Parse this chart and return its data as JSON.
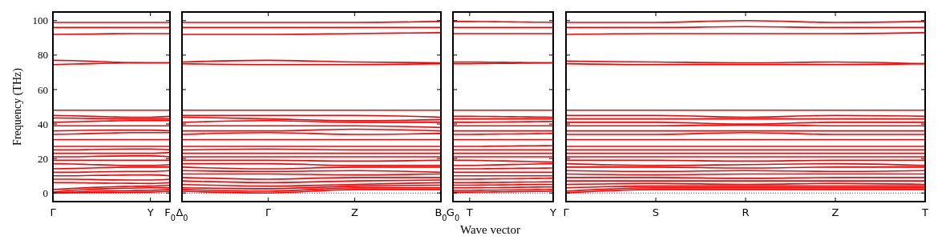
{
  "chart_data": [
    {
      "type": "line",
      "ylabel": "Frequency (THz)",
      "color": "#ff0000",
      "categories": [
        "Γ",
        null,
        null,
        null,
        null,
        "Y",
        "F$_{0}$"
      ],
      "ylim": [
        -5,
        105
      ],
      "yticks": [
        0,
        20,
        40,
        60,
        80,
        100
      ],
      "grid": false,
      "ref_lines": [
        {
          "axis": "y",
          "value": 0,
          "color": "#0000ff",
          "line_style": "dotted"
        }
      ],
      "series": [
        {
          "values": [
            0,
            0.1,
            0.2,
            0.3,
            0.4,
            0.5,
            1
          ]
        },
        {
          "values": [
            0,
            0.5,
            1,
            1.2,
            1.4,
            1.5,
            2
          ]
        },
        {
          "values": [
            0.5,
            1.5,
            2.2,
            2.6,
            2.8,
            3,
            3
          ]
        },
        {
          "values": [
            2,
            2.6,
            3.2,
            3.6,
            3.8,
            4,
            4.5
          ]
        },
        {
          "values": [
            6,
            6,
            5.8,
            5.7,
            5.6,
            5.5,
            6
          ]
        },
        {
          "values": [
            8,
            8,
            7.8,
            7.6,
            7.5,
            7.5,
            8
          ]
        },
        {
          "values": [
            10,
            10,
            10.2,
            10.3,
            10.4,
            10.5,
            10
          ]
        },
        {
          "values": [
            12,
            12,
            12.2,
            12.4,
            12.5,
            12.5,
            13
          ]
        },
        {
          "values": [
            14,
            14.2,
            14.5,
            14.8,
            15,
            15,
            15
          ]
        },
        {
          "values": [
            17,
            16.8,
            16.5,
            16.2,
            16,
            16,
            16.5
          ]
        },
        {
          "values": [
            19,
            19,
            19,
            19,
            19,
            19,
            19
          ]
        },
        {
          "values": [
            21,
            21,
            21.2,
            21.4,
            21.5,
            21.5,
            21
          ]
        },
        {
          "values": [
            23,
            23,
            23,
            23,
            23,
            23,
            23.5
          ]
        },
        {
          "values": [
            25,
            25,
            25.2,
            25.4,
            25.5,
            25.5,
            25
          ]
        },
        {
          "values": [
            27,
            27,
            27,
            27,
            27,
            27,
            27
          ]
        },
        {
          "values": [
            31,
            31,
            31,
            31,
            31,
            31,
            31
          ]
        },
        {
          "values": [
            34,
            34.2,
            34.5,
            34.8,
            35,
            35,
            35
          ]
        },
        {
          "values": [
            36,
            36.2,
            36.4,
            36.5,
            36.5,
            36.5,
            36
          ]
        },
        {
          "values": [
            39,
            39,
            39,
            39,
            39,
            39,
            39
          ]
        },
        {
          "values": [
            41,
            41.3,
            41.6,
            41.8,
            42,
            42,
            42
          ]
        },
        {
          "values": [
            43.5,
            43.4,
            43.2,
            43.1,
            43,
            43,
            43
          ]
        },
        {
          "values": [
            45,
            44.8,
            44.5,
            44.2,
            44,
            44,
            44.5
          ]
        },
        {
          "values": [
            48,
            48,
            48,
            48,
            48,
            48,
            48
          ]
        },
        {
          "values": [
            74.5,
            74.8,
            75,
            75.3,
            75.5,
            75.5,
            75.5
          ]
        },
        {
          "values": [
            77,
            76.8,
            76.4,
            76,
            75.6,
            75.5,
            75.5
          ]
        },
        {
          "values": [
            92,
            92.1,
            92.2,
            92.4,
            92.5,
            92.5,
            92.5
          ]
        },
        {
          "values": [
            96,
            96,
            96,
            96,
            96,
            96,
            96
          ]
        },
        {
          "values": [
            99,
            99,
            99,
            99,
            99,
            99,
            99
          ]
        }
      ]
    },
    {
      "type": "line",
      "color": "#ff0000",
      "tick_labels": "x",
      "categories": [
        "Δ$_{0}$",
        "Γ",
        "Z",
        "B$_{0}$"
      ],
      "ylim": [
        -5,
        105
      ],
      "yticks": [
        0,
        20,
        40,
        60,
        80,
        100
      ],
      "grid": false,
      "ref_lines": [
        {
          "axis": "y",
          "value": 0,
          "color": "#0000ff",
          "line_style": "dotted"
        }
      ],
      "series": [
        {
          "values": [
            1,
            0,
            2,
            2
          ]
        },
        {
          "values": [
            2,
            1,
            3,
            3
          ]
        },
        {
          "values": [
            3,
            2.5,
            4,
            4.5
          ]
        },
        {
          "values": [
            5,
            4,
            5,
            6
          ]
        },
        {
          "values": [
            7,
            6,
            7,
            7.5
          ]
        },
        {
          "values": [
            9,
            8,
            9,
            9
          ]
        },
        {
          "values": [
            11,
            11,
            10.5,
            11
          ]
        },
        {
          "values": [
            13,
            12.5,
            13,
            12
          ]
        },
        {
          "values": [
            15,
            14,
            15,
            15
          ]
        },
        {
          "values": [
            17,
            17,
            16,
            16
          ]
        },
        {
          "values": [
            19,
            19,
            18.5,
            19
          ]
        },
        {
          "values": [
            21,
            21,
            21,
            21
          ]
        },
        {
          "values": [
            23,
            23,
            23,
            23
          ]
        },
        {
          "values": [
            25,
            25.5,
            25,
            25
          ]
        },
        {
          "values": [
            27,
            27,
            27,
            27
          ]
        },
        {
          "values": [
            31,
            31,
            31,
            31
          ]
        },
        {
          "values": [
            34,
            35,
            34,
            34.5
          ]
        },
        {
          "values": [
            36,
            36,
            37,
            36
          ]
        },
        {
          "values": [
            39,
            39,
            39,
            38
          ]
        },
        {
          "values": [
            41,
            42,
            41,
            41
          ]
        },
        {
          "values": [
            44,
            43,
            42,
            42.5
          ]
        },
        {
          "values": [
            45,
            45,
            45,
            44
          ]
        },
        {
          "values": [
            48,
            48,
            48,
            48
          ]
        },
        {
          "values": [
            75,
            74.5,
            74.5,
            75
          ]
        },
        {
          "values": [
            76,
            77,
            76,
            75.5
          ]
        },
        {
          "values": [
            92,
            92,
            92.5,
            93
          ]
        },
        {
          "values": [
            96,
            96,
            96,
            96
          ]
        },
        {
          "values": [
            99,
            99,
            99,
            99.5
          ]
        }
      ]
    },
    {
      "type": "line",
      "xlabel": "Wave vector",
      "color": "#ff0000",
      "tick_labels": "x",
      "categories": [
        "G$_{0}$",
        "T",
        null,
        null,
        null,
        null,
        "Y"
      ],
      "ylim": [
        -5,
        105
      ],
      "yticks": [
        0,
        20,
        40,
        60,
        80,
        100
      ],
      "grid": false,
      "ref_lines": [
        {
          "axis": "y",
          "value": 0,
          "color": "#0000ff",
          "line_style": "dotted"
        }
      ],
      "series": [
        {
          "values": [
            0.5,
            0.5,
            0.6,
            0.7,
            0.8,
            0.9,
            1
          ]
        },
        {
          "values": [
            1.5,
            1.5,
            1.6,
            1.7,
            1.8,
            1.9,
            2
          ]
        },
        {
          "values": [
            3,
            3,
            3.1,
            3.2,
            3.3,
            3.4,
            3.5
          ]
        },
        {
          "values": [
            4.5,
            4.5,
            4.6,
            4.7,
            4.8,
            4.9,
            5
          ]
        },
        {
          "values": [
            6,
            6,
            6.1,
            6.2,
            6.3,
            6.4,
            6.5
          ]
        },
        {
          "values": [
            8,
            8,
            8.1,
            8.2,
            8.3,
            8.4,
            8.5
          ]
        },
        {
          "values": [
            10,
            10,
            10,
            10,
            10,
            10,
            10
          ]
        },
        {
          "values": [
            12,
            12,
            12,
            12,
            12,
            12,
            12
          ]
        },
        {
          "values": [
            14,
            14,
            14.1,
            14.2,
            14.3,
            14.4,
            14.5
          ]
        },
        {
          "values": [
            16,
            16,
            16.2,
            16.4,
            16.6,
            16.8,
            17
          ]
        },
        {
          "values": [
            19,
            19,
            18.8,
            18.6,
            18.4,
            18.2,
            18
          ]
        },
        {
          "values": [
            21,
            21,
            21,
            21,
            21,
            21,
            21
          ]
        },
        {
          "values": [
            23,
            23,
            23,
            23,
            23,
            23,
            23
          ]
        },
        {
          "values": [
            25,
            25,
            25,
            25,
            25,
            25,
            25
          ]
        },
        {
          "values": [
            27,
            27,
            27.1,
            27.2,
            27.3,
            27.4,
            27.5
          ]
        },
        {
          "values": [
            31,
            31,
            31,
            31,
            31,
            31,
            31
          ]
        },
        {
          "values": [
            34,
            34,
            34.1,
            34.2,
            34.3,
            34.4,
            34.5
          ]
        },
        {
          "values": [
            36,
            36,
            36,
            36,
            36,
            36,
            36
          ]
        },
        {
          "values": [
            39,
            39,
            39,
            39,
            39,
            39,
            39
          ]
        },
        {
          "values": [
            41,
            41,
            41.1,
            41.2,
            41.3,
            41.4,
            41.5
          ]
        },
        {
          "values": [
            43,
            43,
            43,
            43,
            43,
            43,
            43
          ]
        },
        {
          "values": [
            44.5,
            44.5,
            44.4,
            44.3,
            44.2,
            44.1,
            44
          ]
        },
        {
          "values": [
            48,
            48,
            48,
            48,
            48,
            48,
            48
          ]
        },
        {
          "values": [
            75,
            75,
            75.1,
            75.2,
            75.3,
            75.4,
            75.5
          ]
        },
        {
          "values": [
            76,
            76,
            75.9,
            75.8,
            75.7,
            75.6,
            75.5
          ]
        },
        {
          "values": [
            92.5,
            92.5,
            92.5,
            92.5,
            92.5,
            92.5,
            92.5
          ]
        },
        {
          "values": [
            96,
            96,
            96,
            96,
            96,
            96,
            96
          ]
        },
        {
          "values": [
            99.5,
            99.5,
            99.4,
            99.3,
            99.2,
            99.1,
            99
          ]
        }
      ]
    },
    {
      "type": "line",
      "color": "#ff0000",
      "tick_labels": "x",
      "categories": [
        "Γ",
        "S",
        "R",
        "Z",
        "T"
      ],
      "ylim": [
        -5,
        105
      ],
      "yticks": [
        0,
        20,
        40,
        60,
        80,
        100
      ],
      "grid": false,
      "ref_lines": [
        {
          "axis": "y",
          "value": 0,
          "color": "#0000ff",
          "line_style": "dotted"
        }
      ],
      "series": [
        {
          "values": [
            0,
            2,
            2,
            2,
            2
          ]
        },
        {
          "values": [
            1,
            3,
            3,
            3,
            3
          ]
        },
        {
          "values": [
            3,
            4,
            4,
            4,
            4
          ]
        },
        {
          "values": [
            5,
            5.5,
            5,
            5.5,
            5
          ]
        },
        {
          "values": [
            7,
            7,
            7,
            7,
            7
          ]
        },
        {
          "values": [
            9,
            9,
            8.5,
            9,
            9
          ]
        },
        {
          "values": [
            11,
            10.5,
            11,
            11,
            11
          ]
        },
        {
          "values": [
            13,
            12.5,
            13,
            12.5,
            13
          ]
        },
        {
          "values": [
            15,
            15,
            14.5,
            15,
            15
          ]
        },
        {
          "values": [
            17,
            16,
            16.5,
            17,
            16
          ]
        },
        {
          "values": [
            19,
            19,
            18.5,
            19,
            19
          ]
        },
        {
          "values": [
            21,
            21,
            21,
            21,
            21
          ]
        },
        {
          "values": [
            23,
            23,
            23,
            23,
            23
          ]
        },
        {
          "values": [
            25,
            25,
            25,
            25,
            25
          ]
        },
        {
          "values": [
            27,
            27,
            27,
            27,
            27
          ]
        },
        {
          "values": [
            31,
            31,
            31,
            31,
            31
          ]
        },
        {
          "values": [
            34,
            34,
            35,
            34,
            34
          ]
        },
        {
          "values": [
            36,
            36,
            36,
            36,
            36
          ]
        },
        {
          "values": [
            39,
            39,
            39.5,
            39,
            39
          ]
        },
        {
          "values": [
            41,
            41,
            40,
            41,
            41
          ]
        },
        {
          "values": [
            43,
            43,
            43,
            43,
            43
          ]
        },
        {
          "values": [
            45,
            45,
            44,
            45,
            44.5
          ]
        },
        {
          "values": [
            48,
            48,
            48,
            48,
            48
          ]
        },
        {
          "values": [
            75,
            74.5,
            74.5,
            74.5,
            75
          ]
        },
        {
          "values": [
            76.5,
            76,
            75.5,
            76,
            75
          ]
        },
        {
          "values": [
            92,
            92.5,
            92.5,
            92.5,
            93
          ]
        },
        {
          "values": [
            96,
            96,
            96.5,
            96,
            96
          ]
        },
        {
          "values": [
            99,
            99,
            100,
            99,
            99.5
          ]
        }
      ]
    }
  ]
}
